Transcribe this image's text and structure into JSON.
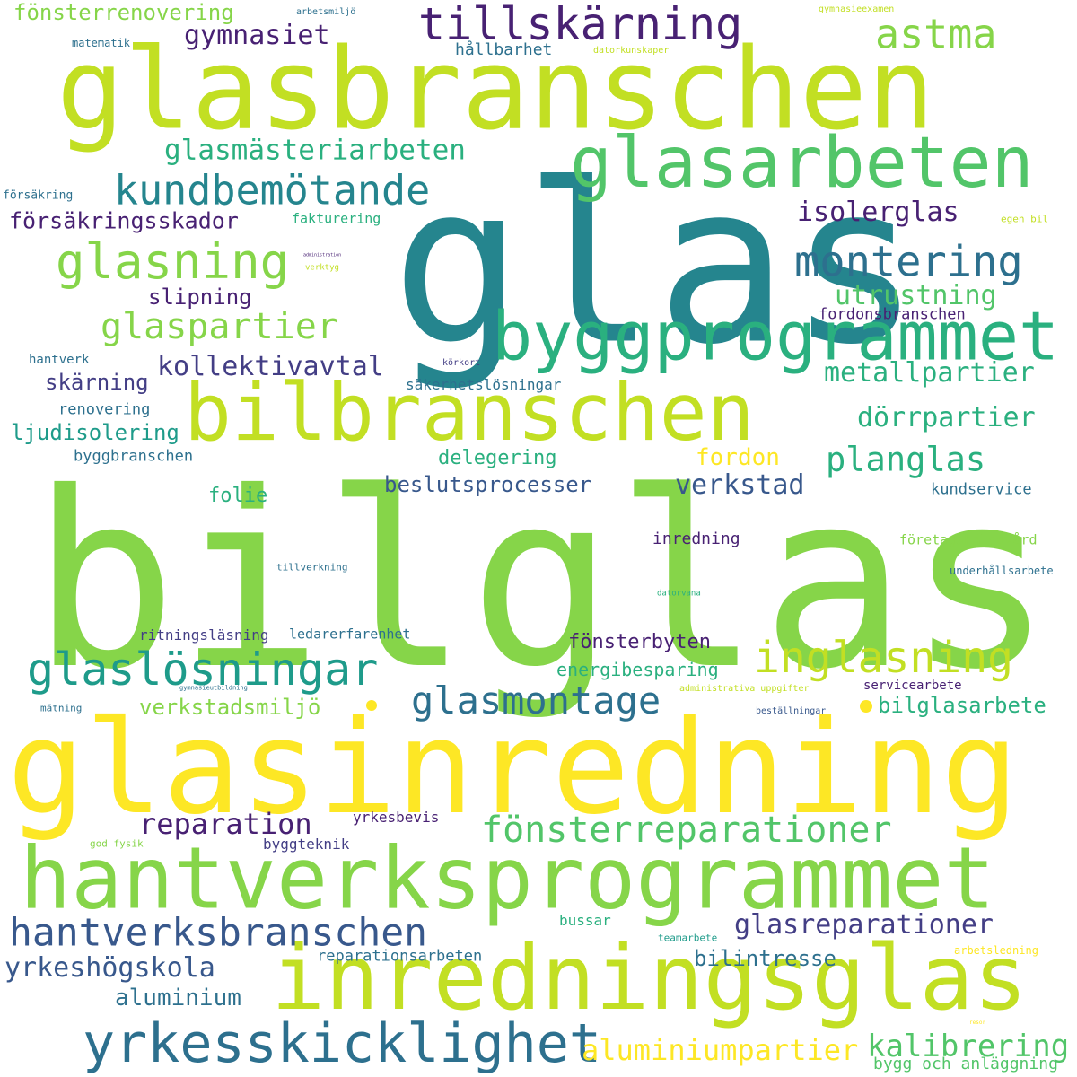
{
  "colors": {
    "yellow": "#fde725",
    "lime": "#c2df23",
    "green_light": "#86d549",
    "green": "#52c569",
    "green_teal": "#2ab07f",
    "teal": "#1e9b8a",
    "teal_blue": "#25858e",
    "blue_teal": "#2d708e",
    "blue": "#38588c",
    "indigo": "#433e85",
    "purple": "#482173"
  },
  "words": [
    {
      "text": "bilglas"
    },
    {
      "text": "glas"
    },
    {
      "text": "glasinredning"
    },
    {
      "text": "glasbranschen"
    },
    {
      "text": "hantverksprogrammet"
    },
    {
      "text": "inredningsglas"
    },
    {
      "text": "bilbranschen"
    },
    {
      "text": "byggprogrammet"
    },
    {
      "text": "glasarbeten"
    },
    {
      "text": "yrkesskicklighet"
    },
    {
      "text": "tillskärning"
    },
    {
      "text": "glasning"
    },
    {
      "text": "glaslösningar"
    },
    {
      "text": "hantverksbranschen"
    },
    {
      "text": "inglasning"
    },
    {
      "text": "kundbemötande"
    },
    {
      "text": "montering"
    },
    {
      "text": "fönsterreparationer"
    },
    {
      "text": "glasmontage"
    },
    {
      "text": "astma"
    },
    {
      "text": "glaspartier"
    },
    {
      "text": "glasmästeriarbeten"
    },
    {
      "text": "aluminiumpartier"
    },
    {
      "text": "kalibrering"
    },
    {
      "text": "planglas"
    },
    {
      "text": "glasreparationer"
    },
    {
      "text": "reparation"
    },
    {
      "text": "yrkeshögskola"
    },
    {
      "text": "isolerglas"
    },
    {
      "text": "kollektivavtal"
    },
    {
      "text": "utrustning"
    },
    {
      "text": "metallpartier"
    },
    {
      "text": "gymnasiet"
    },
    {
      "text": "försäkringsskador"
    },
    {
      "text": "dörrpartier"
    },
    {
      "text": "fönsterrenovering"
    },
    {
      "text": "verkstad"
    },
    {
      "text": "beslutsprocesser"
    },
    {
      "text": "aluminium"
    },
    {
      "text": "bilglasarbete"
    },
    {
      "text": "verkstadsmiljö"
    },
    {
      "text": "fönsterbyten"
    },
    {
      "text": "fordon"
    },
    {
      "text": "bilintresse"
    },
    {
      "text": "slipning"
    },
    {
      "text": "skärning"
    },
    {
      "text": "ljudisolering"
    },
    {
      "text": "delegering"
    },
    {
      "text": "energibesparing"
    },
    {
      "text": "hållbarhet"
    },
    {
      "text": "folie"
    },
    {
      "text": "bygg och anläggning"
    },
    {
      "text": "fordonsbranschen"
    },
    {
      "text": "säkerhetslösningar"
    },
    {
      "text": "renovering"
    },
    {
      "text": "reparationsarbeten"
    },
    {
      "text": "byggbranschen"
    },
    {
      "text": "kundservice"
    },
    {
      "text": "inredning"
    },
    {
      "text": "ritningsläsning"
    },
    {
      "text": "ledarerfarenhet"
    },
    {
      "text": "företagshälsovård"
    },
    {
      "text": "byggteknik"
    },
    {
      "text": "yrkesbevis"
    },
    {
      "text": "bussar"
    },
    {
      "text": "servicearbete"
    },
    {
      "text": "fakturering"
    },
    {
      "text": "hantverk"
    },
    {
      "text": "underhållsarbete"
    },
    {
      "text": "tillverkning"
    },
    {
      "text": "matematik"
    },
    {
      "text": "försäkring"
    },
    {
      "text": "egen bil"
    },
    {
      "text": "körkort"
    },
    {
      "text": "mätning"
    },
    {
      "text": "beställningar"
    },
    {
      "text": "arbetsledning"
    },
    {
      "text": "teamarbete"
    },
    {
      "text": "god fysik"
    },
    {
      "text": "arbetsmiljö"
    },
    {
      "text": "gymnasieexamen"
    },
    {
      "text": "datorkunskaper"
    },
    {
      "text": "administrativa uppgifter"
    },
    {
      "text": "gymnasieutbildning"
    },
    {
      "text": "datorvana"
    },
    {
      "text": "verktyg"
    },
    {
      "text": "administration"
    },
    {
      "text": "resor"
    }
  ]
}
